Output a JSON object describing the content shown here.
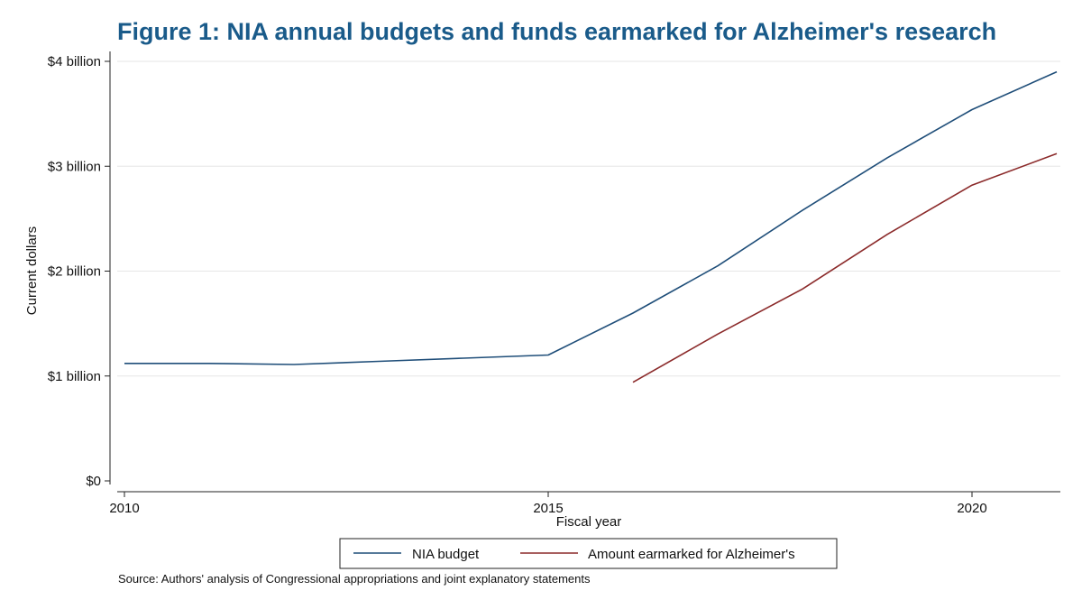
{
  "chart_data": {
    "type": "line",
    "title": "Figure 1: NIA annual budgets and funds earmarked for Alzheimer's research",
    "xlabel": "Fiscal year",
    "ylabel": "Current dollars",
    "xlim": [
      2010,
      2021
    ],
    "ylim": [
      0,
      4
    ],
    "x_ticks": [
      2010,
      2015,
      2020
    ],
    "x_tick_labels": [
      "2010",
      "2015",
      "2020"
    ],
    "y_ticks": [
      0,
      1,
      2,
      3,
      4
    ],
    "y_tick_labels": [
      "$0",
      "$1 billion",
      "$2 billion",
      "$3 billion",
      "$4 billion"
    ],
    "grid": true,
    "legend_position": "bottom",
    "series": [
      {
        "name": "NIA budget",
        "color": "#1f4e79",
        "x": [
          2010,
          2011,
          2012,
          2013,
          2014,
          2015,
          2016,
          2017,
          2018,
          2019,
          2020,
          2021
        ],
        "y": [
          1.12,
          1.12,
          1.11,
          1.14,
          1.17,
          1.2,
          1.6,
          2.05,
          2.58,
          3.08,
          3.54,
          3.9
        ]
      },
      {
        "name": "Amount earmarked for Alzheimer's",
        "color": "#8b2a2a",
        "x": [
          2016,
          2017,
          2018,
          2019,
          2020,
          2021
        ],
        "y": [
          0.94,
          1.4,
          1.83,
          2.35,
          2.82,
          3.12
        ]
      }
    ],
    "source": "Source: Authors' analysis of Congressional appropriations and joint explanatory statements"
  }
}
